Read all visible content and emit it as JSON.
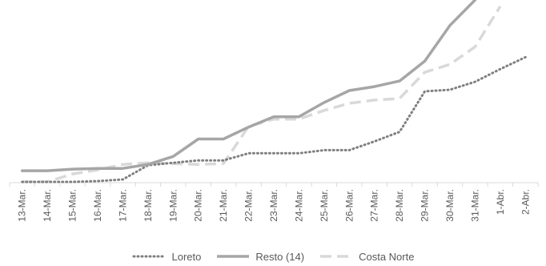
{
  "chart_data": {
    "type": "line",
    "title": "",
    "xlabel": "",
    "ylabel": "",
    "x": [
      "13-Mar.",
      "14-Mar.",
      "15-Mar.",
      "16-Mar.",
      "17-Mar.",
      "18-Mar.",
      "19-Mar.",
      "20-Mar.",
      "21-Mar.",
      "22-Mar.",
      "23-Mar.",
      "24-Mar.",
      "25-Mar.",
      "26-Mar.",
      "27-Mar.",
      "28-Mar.",
      "29-Mar.",
      "30-Mar.",
      "31-Mar.",
      "1-Abr.",
      "2-Abr."
    ],
    "ylim": [
      0,
      230
    ],
    "grid": false,
    "legend_position": "bottom",
    "series": [
      {
        "name": "Loreto",
        "color": "#7f7f7f",
        "style": "dotted",
        "values": [
          1,
          1,
          1,
          2,
          4,
          22,
          25,
          28,
          28,
          37,
          37,
          37,
          41,
          41,
          52,
          64,
          115,
          117,
          127,
          143,
          158
        ]
      },
      {
        "name": "Resto (14)",
        "color": "#a6a6a6",
        "style": "solid",
        "values": [
          15,
          15,
          17,
          18,
          18,
          23,
          33,
          55,
          55,
          70,
          83,
          83,
          101,
          116,
          121,
          128,
          153,
          198,
          230,
          null,
          null
        ]
      },
      {
        "name": "Costa Norte",
        "color": "#d9d9d9",
        "style": "dashed",
        "values": [
          1,
          1,
          11,
          16,
          23,
          25,
          24,
          23,
          24,
          71,
          80,
          80,
          91,
          100,
          104,
          106,
          139,
          149,
          171,
          222,
          null
        ]
      }
    ]
  }
}
